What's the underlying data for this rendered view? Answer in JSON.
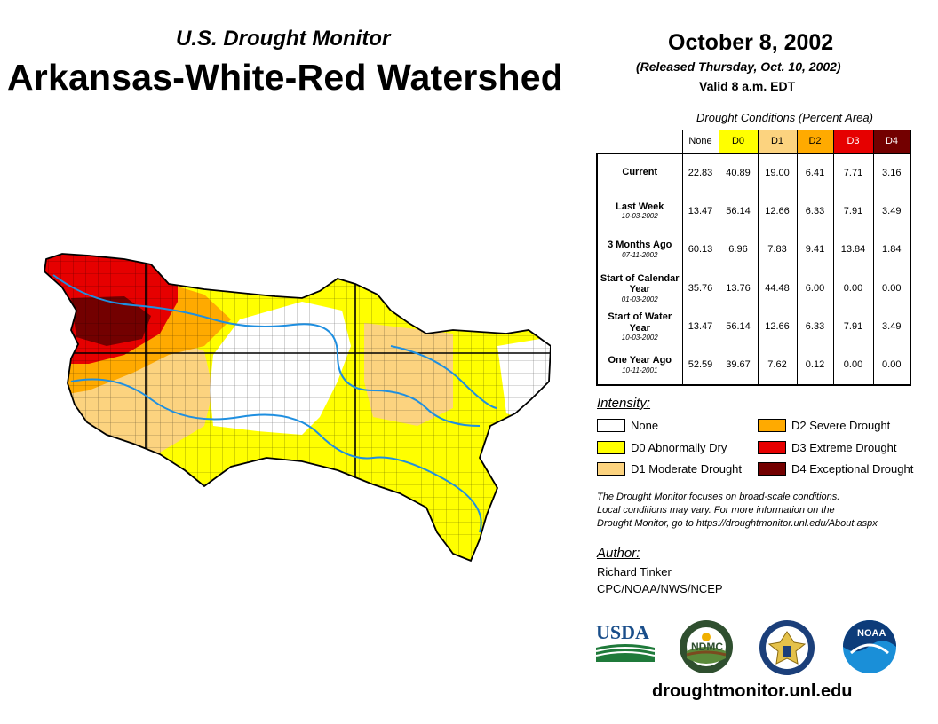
{
  "header": {
    "subtitle": "U.S. Drought Monitor",
    "title": "Arkansas-White-Red Watershed",
    "date": "October 8, 2002",
    "released": "(Released Thursday, Oct. 10, 2002)",
    "valid": "Valid 8 a.m. EDT"
  },
  "conditions": {
    "title": "Drought Conditions (Percent Area)",
    "columns": [
      "None",
      "D0",
      "D1",
      "D2",
      "D3",
      "D4"
    ],
    "column_colors": [
      "#ffffff",
      "#ffff00",
      "#fcd37f",
      "#ffaa00",
      "#e60000",
      "#730000"
    ],
    "rows": [
      {
        "label": "Current",
        "date": "",
        "values": [
          "22.83",
          "40.89",
          "19.00",
          "6.41",
          "7.71",
          "3.16"
        ]
      },
      {
        "label": "Last Week",
        "date": "10-03-2002",
        "values": [
          "13.47",
          "56.14",
          "12.66",
          "6.33",
          "7.91",
          "3.49"
        ]
      },
      {
        "label": "3 Months Ago",
        "date": "07-11-2002",
        "values": [
          "60.13",
          "6.96",
          "7.83",
          "9.41",
          "13.84",
          "1.84"
        ]
      },
      {
        "label": "Start of Calendar Year",
        "date": "01-03-2002",
        "values": [
          "35.76",
          "13.76",
          "44.48",
          "6.00",
          "0.00",
          "0.00"
        ]
      },
      {
        "label": "Start of Water Year",
        "date": "10-03-2002",
        "values": [
          "13.47",
          "56.14",
          "12.66",
          "6.33",
          "7.91",
          "3.49"
        ]
      },
      {
        "label": "One Year Ago",
        "date": "10-11-2001",
        "values": [
          "52.59",
          "39.67",
          "7.62",
          "0.12",
          "0.00",
          "0.00"
        ]
      }
    ]
  },
  "legend": {
    "title": "Intensity:",
    "items": [
      {
        "label": "None",
        "color": "#ffffff"
      },
      {
        "label": "D0 Abnormally Dry",
        "color": "#ffff00"
      },
      {
        "label": "D1 Moderate Drought",
        "color": "#fcd37f"
      },
      {
        "label": "D2 Severe Drought",
        "color": "#ffaa00"
      },
      {
        "label": "D3 Extreme Drought",
        "color": "#e60000"
      },
      {
        "label": "D4 Exceptional Drought",
        "color": "#730000"
      }
    ]
  },
  "note": {
    "line1": "The Drought Monitor focuses on broad-scale conditions.",
    "line2": "Local conditions may vary. For more information on the",
    "line3": "Drought Monitor, go to https://droughtmonitor.unl.edu/About.aspx"
  },
  "author": {
    "title": "Author:",
    "name": "Richard Tinker",
    "org": "CPC/NOAA/NWS/NCEP"
  },
  "logos": {
    "usda": "USDA",
    "ndmc": "NDMC",
    "noaa": "NOAA"
  },
  "footer": {
    "url": "droughtmonitor.unl.edu"
  }
}
